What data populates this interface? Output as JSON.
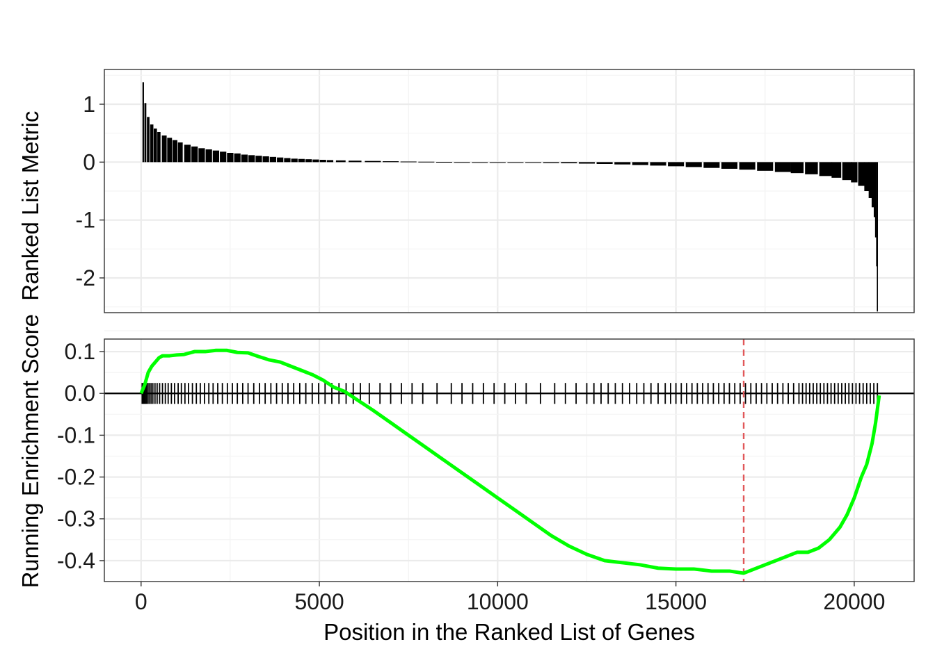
{
  "chart_data": [
    {
      "type": "bar",
      "panel": "ranked-list-metric",
      "ylabel": "Ranked List Metric",
      "xlim": [
        -1030,
        21680
      ],
      "ylim": [
        -2.6,
        1.6
      ],
      "y_ticks": [
        "-2",
        "-1",
        "0",
        "1"
      ],
      "y_tick_values": [
        -2,
        -1,
        0,
        1
      ],
      "grid": true,
      "x": [
        60,
        120,
        200,
        300,
        400,
        500,
        650,
        800,
        950,
        1100,
        1300,
        1500,
        1700,
        1900,
        2100,
        2300,
        2500,
        2700,
        2900,
        3100,
        3300,
        3500,
        3700,
        3900,
        4100,
        4300,
        4500,
        4700,
        4900,
        5100,
        5300,
        5600,
        6000,
        6500,
        7000,
        7500,
        8000,
        8500,
        9000,
        9500,
        10000,
        10500,
        11000,
        11500,
        12000,
        12500,
        13000,
        13500,
        14000,
        14500,
        15000,
        15500,
        16000,
        16500,
        17000,
        17500,
        18000,
        18400,
        18800,
        19200,
        19500,
        19800,
        20000,
        20200,
        20350,
        20450,
        20520,
        20570,
        20600,
        20630,
        20650
      ],
      "values": [
        1.38,
        1.02,
        0.78,
        0.65,
        0.58,
        0.52,
        0.46,
        0.42,
        0.38,
        0.34,
        0.3,
        0.27,
        0.24,
        0.22,
        0.2,
        0.18,
        0.16,
        0.15,
        0.13,
        0.12,
        0.11,
        0.1,
        0.09,
        0.08,
        0.07,
        0.06,
        0.055,
        0.05,
        0.045,
        0.04,
        0.035,
        0.03,
        0.025,
        0.02,
        0.015,
        0.01,
        0.007,
        0.004,
        0.001,
        -0.002,
        -0.005,
        -0.008,
        -0.012,
        -0.016,
        -0.02,
        -0.026,
        -0.032,
        -0.04,
        -0.05,
        -0.06,
        -0.072,
        -0.085,
        -0.1,
        -0.115,
        -0.13,
        -0.15,
        -0.17,
        -0.19,
        -0.21,
        -0.24,
        -0.27,
        -0.31,
        -0.35,
        -0.41,
        -0.5,
        -0.62,
        -0.78,
        -0.95,
        -1.3,
        -1.8,
        -2.58
      ]
    },
    {
      "type": "line",
      "panel": "running-enrichment-score",
      "ylabel": "Running Enrichment Score",
      "xlabel": "Position in the Ranked List of Genes",
      "xlim": [
        -1030,
        21680
      ],
      "ylim": [
        -0.45,
        0.13
      ],
      "y_ticks": [
        "-0.4",
        "-0.3",
        "-0.2",
        "-0.1",
        "0.0",
        "0.1"
      ],
      "y_tick_values": [
        -0.4,
        -0.3,
        -0.2,
        -0.1,
        0.0,
        0.1
      ],
      "x_ticks": [
        "0",
        "5000",
        "10000",
        "15000",
        "20000"
      ],
      "x_tick_values": [
        0,
        5000,
        10000,
        15000,
        20000
      ],
      "grid": true,
      "line_color": "#00ff00",
      "max_deviation_color": "#e15759",
      "zero_line_color": "#000000",
      "max_deviation_x": 16900,
      "x": [
        0,
        100,
        200,
        300,
        400,
        500,
        600,
        800,
        1000,
        1200,
        1500,
        1800,
        2100,
        2400,
        2700,
        3000,
        3300,
        3600,
        3900,
        4200,
        4500,
        4800,
        5100,
        5400,
        5700,
        6000,
        6500,
        7000,
        7500,
        8000,
        8500,
        9000,
        9500,
        10000,
        10500,
        11000,
        11500,
        12000,
        12500,
        13000,
        13500,
        14000,
        14500,
        15000,
        15500,
        16000,
        16500,
        16900,
        17200,
        17500,
        17800,
        18100,
        18400,
        18700,
        19000,
        19300,
        19600,
        19800,
        20000,
        20200,
        20350,
        20500,
        20600,
        20700
      ],
      "values": [
        0.0,
        0.02,
        0.05,
        0.065,
        0.075,
        0.085,
        0.09,
        0.09,
        0.092,
        0.093,
        0.1,
        0.1,
        0.103,
        0.103,
        0.098,
        0.097,
        0.088,
        0.08,
        0.075,
        0.065,
        0.055,
        0.045,
        0.032,
        0.015,
        0.005,
        -0.012,
        -0.04,
        -0.07,
        -0.1,
        -0.13,
        -0.16,
        -0.19,
        -0.22,
        -0.25,
        -0.28,
        -0.31,
        -0.34,
        -0.365,
        -0.385,
        -0.4,
        -0.405,
        -0.41,
        -0.418,
        -0.42,
        -0.42,
        -0.425,
        -0.425,
        -0.43,
        -0.42,
        -0.41,
        -0.4,
        -0.39,
        -0.38,
        -0.38,
        -0.37,
        -0.35,
        -0.32,
        -0.29,
        -0.25,
        -0.2,
        -0.17,
        -0.12,
        -0.07,
        -0.005
      ],
      "hits": [
        30,
        60,
        90,
        120,
        150,
        190,
        230,
        280,
        330,
        390,
        450,
        520,
        600,
        680,
        760,
        850,
        940,
        1040,
        1130,
        1230,
        1330,
        1440,
        1550,
        1660,
        1780,
        1900,
        2020,
        2150,
        2280,
        2420,
        2560,
        2700,
        2850,
        3000,
        3160,
        3320,
        3480,
        3640,
        3800,
        3960,
        4120,
        4280,
        4450,
        4620,
        4800,
        4980,
        5160,
        5350,
        5550,
        5750,
        5950,
        6150,
        6400,
        6700,
        7000,
        7300,
        7600,
        7900,
        8300,
        8700,
        9000,
        9300,
        9600,
        9900,
        10200,
        10500,
        10800,
        11200,
        11600,
        11900,
        12200,
        12500,
        12700,
        12900,
        13100,
        13300,
        13500,
        13700,
        13900,
        14100,
        14300,
        14500,
        14700,
        14850,
        15000,
        15150,
        15300,
        15450,
        15600,
        15750,
        15900,
        16050,
        16200,
        16350,
        16500,
        16650,
        16800,
        16950,
        17100,
        17250,
        17400,
        17550,
        17700,
        17850,
        18000,
        18150,
        18300,
        18450,
        18550,
        18650,
        18750,
        18850,
        18950,
        19050,
        19150,
        19250,
        19350,
        19450,
        19550,
        19650,
        19750,
        19850,
        19950,
        20050,
        20150,
        20250,
        20350,
        20450,
        20550,
        20650
      ]
    }
  ]
}
